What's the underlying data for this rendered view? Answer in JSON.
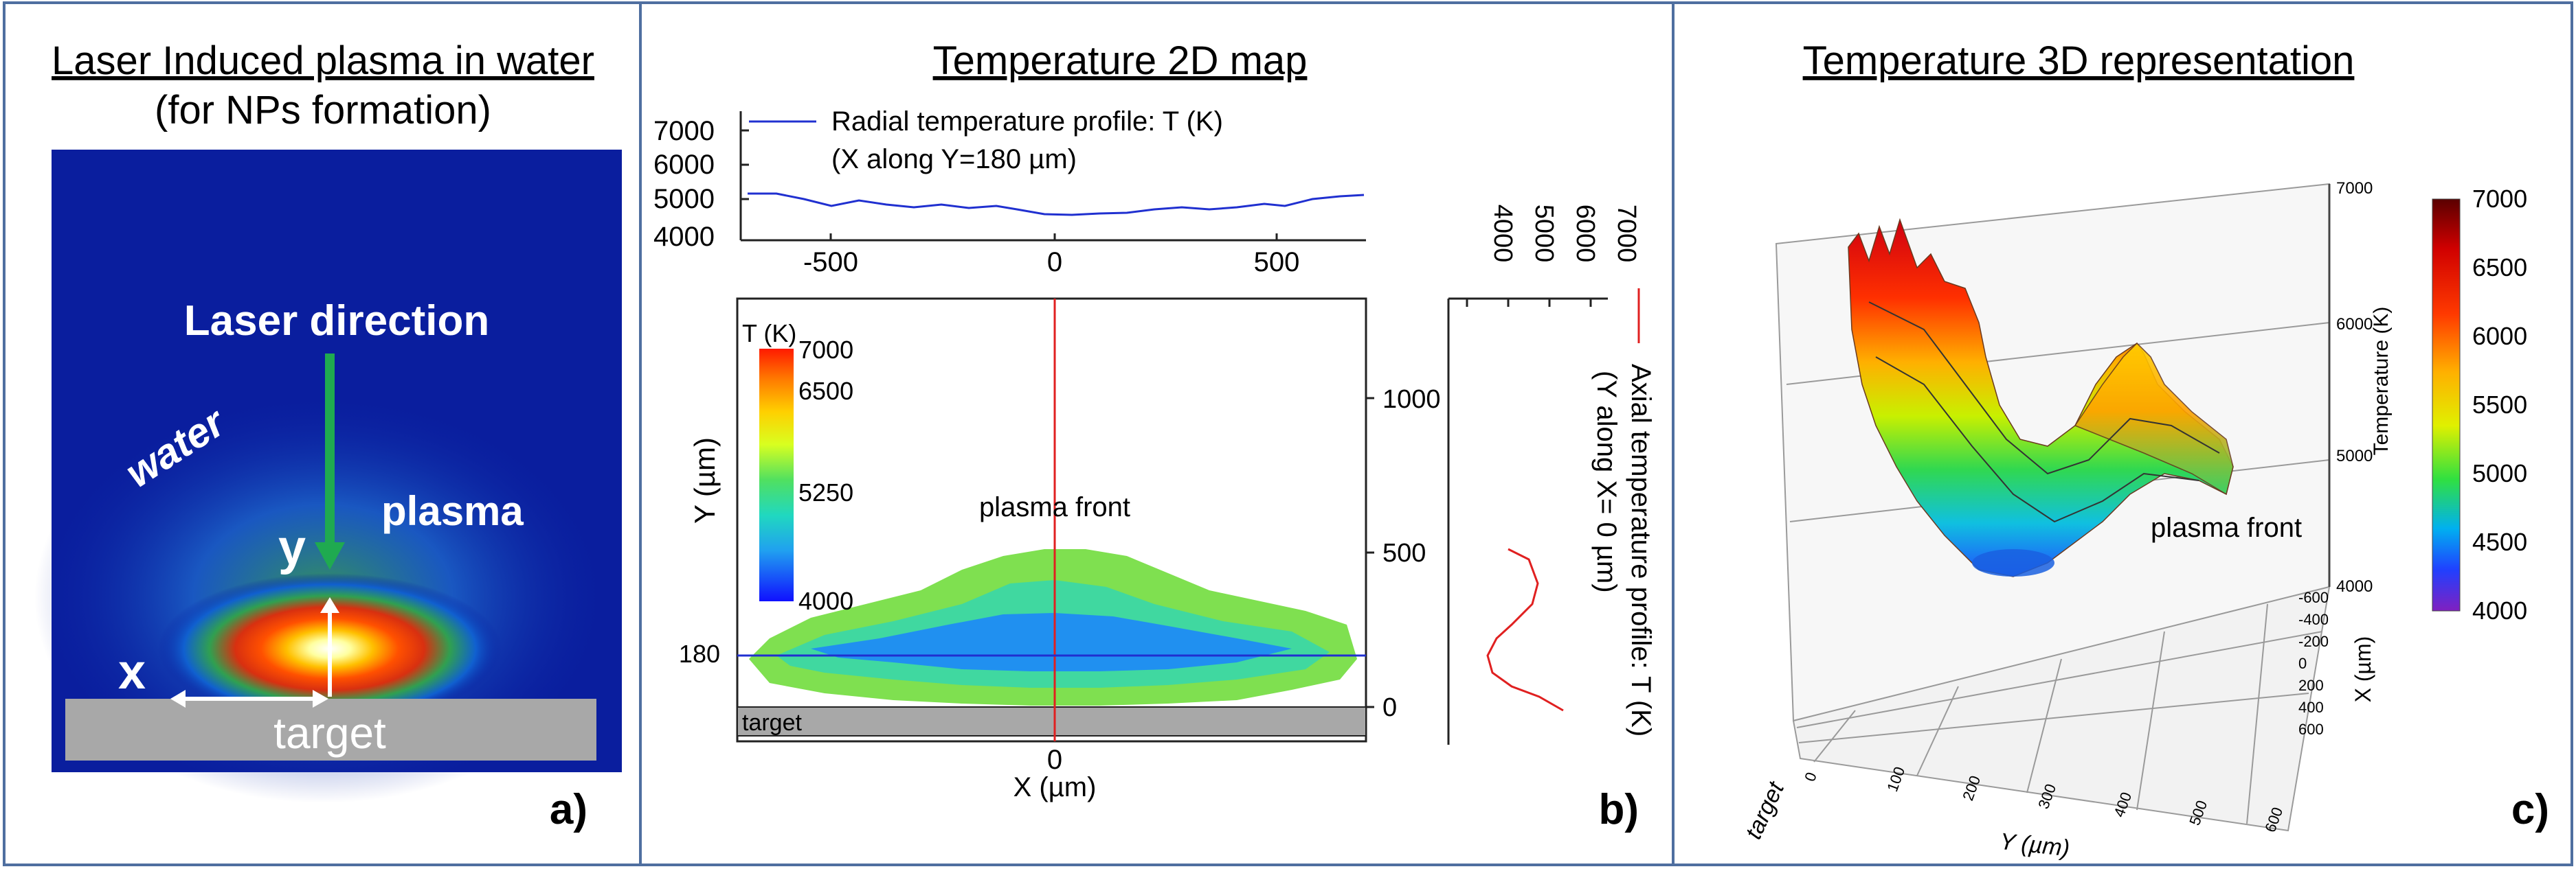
{
  "panel_a": {
    "title": "Laser Induced plasma in water",
    "subtitle": "(for NPs formation)",
    "laser_label": "Laser direction",
    "water_label": "water",
    "plasma_label": "plasma",
    "y_label": "y",
    "x_label": "x",
    "target_label": "target",
    "tag": "a)"
  },
  "panel_b": {
    "title": "Temperature 2D map",
    "radial_legend_1": "Radial temperature profile: T (K)",
    "radial_legend_2": "(X along Y=180 µm)",
    "top_y_ticks": [
      "7000",
      "6000",
      "5000",
      "4000"
    ],
    "top_x_ticks": [
      "-500",
      "0",
      "500"
    ],
    "colorbar_title": "T (K)",
    "colorbar_labels": [
      "7000",
      "6500",
      "5250",
      "4000"
    ],
    "y_axis_label": "Y (µm)",
    "y_line_label": "180",
    "right_y_ticks": [
      "1000",
      "500",
      "0"
    ],
    "plasma_front": "plasma front",
    "target": "target",
    "x_zero": "0",
    "x_axis_label": "X (µm)",
    "side_ticks": [
      "4000",
      "5000",
      "6000",
      "7000"
    ],
    "axial_legend_1": "Axial temperature profile: T (K)",
    "axial_legend_2": "(Y along X= 0 µm)",
    "tag": "b)"
  },
  "panel_c": {
    "title": "Temperature 3D representation",
    "z_ticks": [
      "7000",
      "6000",
      "5000",
      "4000"
    ],
    "colorbar_ticks": [
      "7000",
      "6500",
      "6000",
      "5500",
      "5000",
      "4500",
      "4000"
    ],
    "colorbar_title": "Temperature (K)",
    "x_ticks": [
      "-600",
      "-400",
      "-200",
      "0",
      "200",
      "400",
      "600"
    ],
    "x_axis_label": "X (µm)",
    "y_ticks": [
      "0",
      "100",
      "200",
      "300",
      "400",
      "500",
      "600"
    ],
    "y_axis_label": "Y (µm)",
    "target_label": "target",
    "plasma_front": "plasma front",
    "tag": "c)"
  },
  "colors": {
    "border": "#4f6fa0",
    "radial_line": "#2030d0",
    "axial_line": "#e02020",
    "target_grey": "#a8a8a8"
  }
}
